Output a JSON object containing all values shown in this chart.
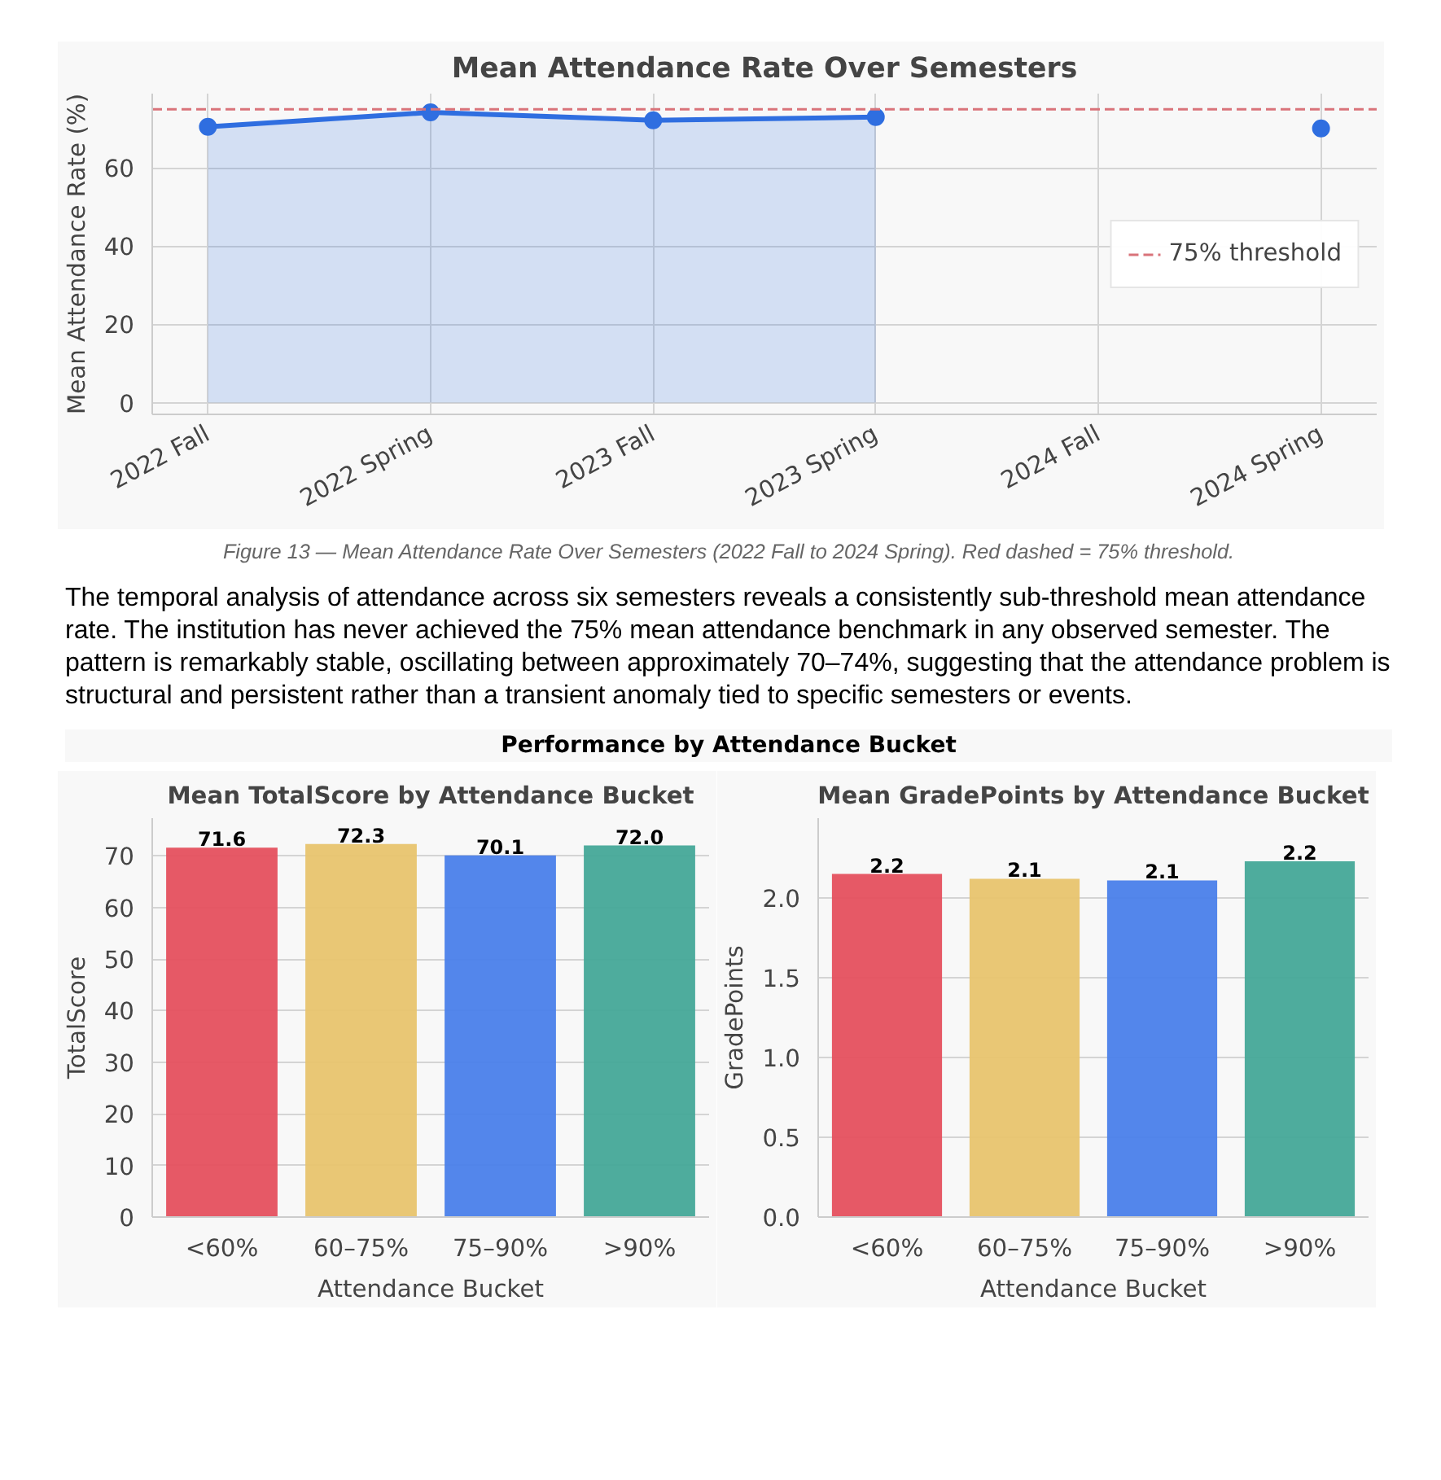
{
  "chart_data": [
    {
      "type": "area",
      "title": "Mean Attendance Rate Over Semesters",
      "ylabel": "Mean Attendance Rate (%)",
      "categories": [
        "2022 Fall",
        "2022 Spring",
        "2023 Fall",
        "2023 Spring",
        "2024 Fall",
        "2024 Spring"
      ],
      "series": [
        {
          "color": "#2f6ee0",
          "values": [
            70.5,
            74.2,
            72.2,
            73.0,
            null,
            null
          ]
        },
        {
          "type": "scatter",
          "color": "#2f6ee0",
          "values": [
            null,
            null,
            null,
            null,
            null,
            70.1
          ]
        }
      ],
      "ylim": [
        -3,
        79
      ],
      "yticks": [
        0,
        20,
        40,
        60
      ],
      "grid": true,
      "marker": "circle",
      "legend": "right",
      "ref_lines": [
        {
          "axis": "y",
          "value": 75,
          "label": "75% threshold",
          "color": "#d9737a",
          "line_style": "dashed"
        }
      ],
      "annotations": [
        "Figure 13 — Mean Attendance Rate Over Semesters (2022 Fall to 2024 Spring). Red dashed = 75% threshold."
      ]
    },
    {
      "type": "other",
      "annotations": [
        "The temporal analysis of attendance across six semesters reveals a consistently sub-threshold mean attendance rate. The institution has never achieved the 75% mean attendance benchmark in any observed semester. The pattern is remarkably stable, oscillating between approximately 70–74%, suggesting that the attendance problem is structural and persistent rather than a transient anomaly tied to specific semesters or events."
      ]
    },
    {
      "type": "other",
      "title": "Performance by Attendance Bucket"
    },
    {
      "type": "bar",
      "title": "Mean TotalScore by Attendance Bucket",
      "xlabel": "Attendance Bucket",
      "ylabel": "TotalScore",
      "categories": [
        "<60%",
        "60–75%",
        "75–90%",
        ">90%"
      ],
      "values": [
        71.6,
        72.3,
        70.1,
        72.0
      ],
      "value_labels": [
        "71.6",
        "72.3",
        "70.1",
        "72.0"
      ],
      "colors": [
        "#e5505e",
        "#e8c46e",
        "#4a80ea",
        "#45a898"
      ],
      "ylim": [
        0,
        77.3
      ],
      "yticks": [
        0,
        10,
        20,
        30,
        40,
        50,
        60,
        70
      ],
      "grid": "y"
    },
    {
      "type": "bar",
      "title": "Mean GradePoints by Attendance Bucket",
      "xlabel": "Attendance Bucket",
      "ylabel": "GradePoints",
      "categories": [
        "<60%",
        "60–75%",
        "75–90%",
        ">90%"
      ],
      "values": [
        2.15,
        2.12,
        2.11,
        2.23
      ],
      "value_labels": [
        "2.2",
        "2.1",
        "2.1",
        "2.2"
      ],
      "colors": [
        "#e5505e",
        "#e8c46e",
        "#4a80ea",
        "#45a898"
      ],
      "ylim": [
        0,
        2.5
      ],
      "yticks": [
        {
          "value": 0,
          "label": "0.0"
        },
        {
          "value": 0.5,
          "label": "0.5"
        },
        {
          "value": 1,
          "label": "1.0"
        },
        {
          "value": 1.5,
          "label": "1.5"
        },
        {
          "value": 2,
          "label": "2.0"
        }
      ],
      "grid": "y"
    }
  ]
}
